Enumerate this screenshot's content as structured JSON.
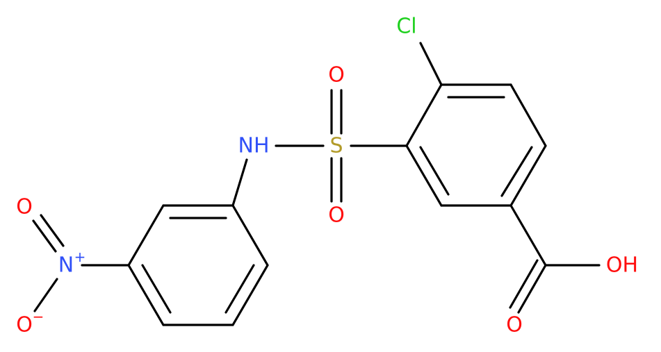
{
  "atoms": [
    {
      "label": "Cl",
      "color": "#1fd01f"
    },
    {
      "label": "S",
      "color": "#b29b2a"
    },
    {
      "label": "O",
      "color": "#ff0d0d"
    },
    {
      "label": "O",
      "color": "#ff0d0d"
    },
    {
      "label": "NH",
      "color": "#3050f8"
    },
    {
      "label": "N",
      "color": "#3050f8",
      "charge": "+"
    },
    {
      "label": "O",
      "color": "#ff0d0d"
    },
    {
      "label": "O",
      "color": "#ff0d0d",
      "charge": "−"
    },
    {
      "label": "OH",
      "color": "#ff0d0d"
    },
    {
      "label": "O",
      "color": "#ff0d0d"
    }
  ]
}
